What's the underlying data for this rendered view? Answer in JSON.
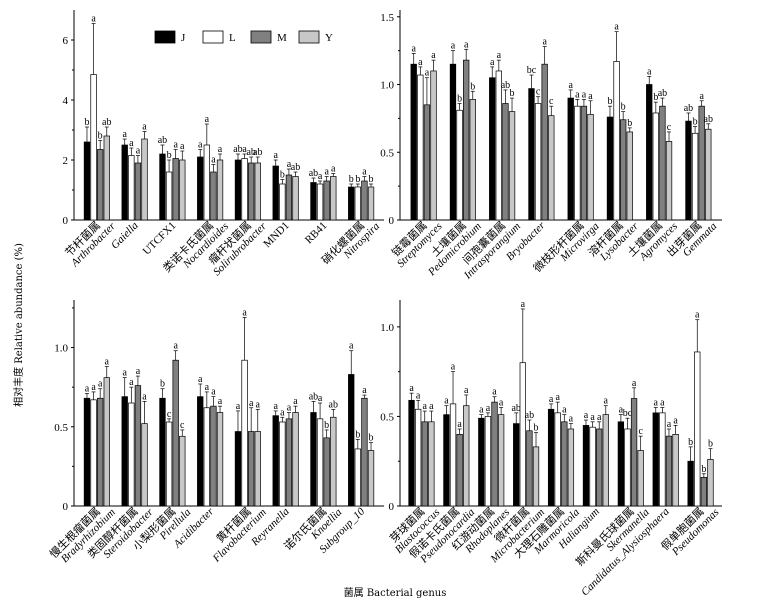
{
  "figure": {
    "xlabel": "菌属 Bacterial genus",
    "ylabel": "相对丰度 Relative abundance (%)"
  },
  "legend": {
    "placement": "top",
    "items": [
      {
        "name": "J",
        "color": "#000000"
      },
      {
        "name": "L",
        "color": "#ffffff"
      },
      {
        "name": "M",
        "color": "#808080"
      },
      {
        "name": "Y",
        "color": "#c8c8c8"
      }
    ]
  },
  "chart_data": [
    {
      "type": "bar",
      "panel": "top-left",
      "ylim": [
        0,
        7
      ],
      "yticks": [
        "0",
        "2",
        "4",
        "6"
      ],
      "categories": [
        {
          "cn": "节杆菌属",
          "la": "Arthrobacter"
        },
        {
          "cn": "",
          "la": "Gaiella"
        },
        {
          "cn": "",
          "la": "UTCFX1"
        },
        {
          "cn": "类诺卡氏菌属",
          "la": "Nocardioides"
        },
        {
          "cn": "瘤杆状菌属",
          "la": "Solirubrobacter"
        },
        {
          "cn": "",
          "la": "MND1"
        },
        {
          "cn": "",
          "la": "RB41"
        },
        {
          "cn": "硝化螺菌属",
          "la": "Nitrospira"
        }
      ],
      "series": [
        {
          "name": "J",
          "values": [
            2.6,
            2.5,
            2.2,
            2.1,
            2.0,
            1.8,
            1.25,
            1.1
          ],
          "errors": [
            0.5,
            0.2,
            0.3,
            0.25,
            0.2,
            0.2,
            0.15,
            0.1
          ]
        },
        {
          "name": "L",
          "values": [
            4.85,
            2.15,
            1.6,
            2.5,
            2.05,
            1.2,
            1.2,
            1.1
          ],
          "errors": [
            1.7,
            0.25,
            0.4,
            0.7,
            0.15,
            0.15,
            0.1,
            0.1
          ]
        },
        {
          "name": "M",
          "values": [
            2.35,
            1.9,
            2.05,
            1.6,
            1.9,
            1.5,
            1.3,
            1.3
          ],
          "errors": [
            0.3,
            0.25,
            0.3,
            0.25,
            0.2,
            0.2,
            0.15,
            0.15
          ]
        },
        {
          "name": "Y",
          "values": [
            2.8,
            2.7,
            2.0,
            2.0,
            1.9,
            1.45,
            1.45,
            1.1
          ],
          "errors": [
            0.3,
            0.25,
            0.3,
            0.2,
            0.2,
            0.15,
            0.1,
            0.1
          ]
        }
      ],
      "letters": [
        [
          "b",
          "a",
          "b",
          "ab"
        ],
        [
          "a",
          "a",
          "a",
          "a"
        ],
        [
          "ab",
          "b",
          "a",
          "a"
        ],
        [
          "a",
          "a",
          "a",
          "a"
        ],
        [
          "ab",
          "a",
          "ab",
          "ab"
        ],
        [
          "a",
          "b",
          "a",
          "ab"
        ],
        [
          "ab",
          "a",
          "a",
          "a"
        ],
        [
          "b",
          "b",
          "a",
          "b"
        ]
      ]
    },
    {
      "type": "bar",
      "panel": "top-right",
      "ylim": [
        0,
        1.55
      ],
      "yticks": [
        "0",
        "0.5",
        "1.0",
        "1.5"
      ],
      "categories": [
        {
          "cn": "链霉菌属",
          "la": "Streptomyces"
        },
        {
          "cn": "土壤菌属",
          "la": "Pedomicrobium"
        },
        {
          "cn": "间孢囊菌属",
          "la": "Intrasporangium"
        },
        {
          "cn": "",
          "la": "Bryobacter"
        },
        {
          "cn": "微枝形杆菌属",
          "la": "Microvirga"
        },
        {
          "cn": "溶杆菌属",
          "la": "Lysobacter"
        },
        {
          "cn": "土壤菌属",
          "la": "Agromyces"
        },
        {
          "cn": "出芽菌属",
          "la": "Gemmata"
        }
      ],
      "series": [
        {
          "name": "J",
          "values": [
            1.15,
            1.15,
            1.05,
            0.97,
            0.9,
            0.76,
            1.0,
            0.73
          ],
          "errors": [
            0.08,
            0.1,
            0.08,
            0.1,
            0.06,
            0.08,
            0.06,
            0.06
          ]
        },
        {
          "name": "L",
          "values": [
            1.07,
            0.81,
            1.1,
            0.86,
            0.84,
            1.17,
            0.79,
            0.64
          ],
          "errors": [
            0.06,
            0.05,
            0.08,
            0.05,
            0.05,
            0.22,
            0.08,
            0.05
          ]
        },
        {
          "name": "M",
          "values": [
            0.85,
            1.18,
            0.86,
            1.15,
            0.84,
            0.74,
            0.84,
            0.84
          ],
          "errors": [
            0.2,
            0.08,
            0.1,
            0.13,
            0.05,
            0.06,
            0.06,
            0.04
          ]
        },
        {
          "name": "Y",
          "values": [
            1.1,
            0.89,
            0.8,
            0.77,
            0.78,
            0.65,
            0.58,
            0.67
          ],
          "errors": [
            0.08,
            0.06,
            0.1,
            0.07,
            0.1,
            0.03,
            0.07,
            0.04
          ]
        }
      ],
      "letters": [
        [
          "a",
          "a",
          "a",
          "a"
        ],
        [
          "a",
          "b",
          "a",
          "b"
        ],
        [
          "a",
          "a",
          "ab",
          "b"
        ],
        [
          "bc",
          "c",
          "a",
          "c"
        ],
        [
          "a",
          "a",
          "a",
          "a"
        ],
        [
          "b",
          "a",
          "b",
          "b"
        ],
        [
          "a",
          "b",
          "ab",
          "c"
        ],
        [
          "ab",
          "b",
          "a",
          "ab"
        ]
      ]
    },
    {
      "type": "bar",
      "panel": "bottom-left",
      "ylim": [
        0,
        1.3
      ],
      "yticks": [
        "0",
        "0.5",
        "1.0"
      ],
      "categories": [
        {
          "cn": "慢生根瘤菌属",
          "la": "Bradyrhizobium"
        },
        {
          "cn": "类固醇杆菌属",
          "la": "Steroidobacter"
        },
        {
          "cn": "小梨形菌属",
          "la": "Pirellula"
        },
        {
          "cn": "",
          "la": "Acidibacter"
        },
        {
          "cn": "黄杆菌属",
          "la": "Flavobacterium"
        },
        {
          "cn": "",
          "la": "Reyranella"
        },
        {
          "cn": "诺尔氏菌属",
          "la": "Knoellia"
        },
        {
          "cn": "",
          "la": "Subgroup_10"
        }
      ],
      "series": [
        {
          "name": "J",
          "values": [
            0.68,
            0.69,
            0.68,
            0.69,
            0.47,
            0.57,
            0.59,
            0.83
          ],
          "errors": [
            0.03,
            0.12,
            0.06,
            0.08,
            0.13,
            0.03,
            0.07,
            0.15
          ]
        },
        {
          "name": "L",
          "values": [
            0.67,
            0.65,
            0.53,
            0.62,
            0.92,
            0.53,
            0.55,
            0.36
          ],
          "errors": [
            0.05,
            0.1,
            0.02,
            0.1,
            0.27,
            0.03,
            0.1,
            0.06
          ]
        },
        {
          "name": "M",
          "values": [
            0.68,
            0.76,
            0.92,
            0.63,
            0.47,
            0.55,
            0.43,
            0.68
          ],
          "errors": [
            0.06,
            0.06,
            0.06,
            0.06,
            0.15,
            0.04,
            0.05,
            0.02
          ]
        },
        {
          "name": "Y",
          "values": [
            0.81,
            0.52,
            0.44,
            0.59,
            0.47,
            0.59,
            0.56,
            0.35
          ],
          "errors": [
            0.07,
            0.14,
            0.04,
            0.04,
            0.14,
            0.04,
            0.05,
            0.05
          ]
        }
      ],
      "letters": [
        [
          "a",
          "a",
          "a",
          "a"
        ],
        [
          "a",
          "a",
          "a",
          "a"
        ],
        [
          "b",
          "c",
          "a",
          "c"
        ],
        [
          "a",
          "a",
          "a",
          "a"
        ],
        [
          "a",
          "a",
          "a",
          "a"
        ],
        [
          "a",
          "a",
          "a",
          "a"
        ],
        [
          "ab",
          "a",
          "b",
          "ab"
        ],
        [
          "a",
          "b",
          "a",
          "b"
        ]
      ]
    },
    {
      "type": "bar",
      "panel": "bottom-right",
      "ylim": [
        0,
        1.15
      ],
      "yticks": [
        "0",
        "0.5",
        "1.0"
      ],
      "categories": [
        {
          "cn": "芽球菌属",
          "la": "Blastococcus"
        },
        {
          "cn": "假诺卡氏菌属",
          "la": "Pseudonocardia"
        },
        {
          "cn": "红游动菌属",
          "la": "Rhodoplanes"
        },
        {
          "cn": "微杆菌属",
          "la": "Microbacterium"
        },
        {
          "cn": "大理石雕菌属",
          "la": "Marmoricola"
        },
        {
          "cn": "",
          "la": "Haliangium"
        },
        {
          "cn": "斯科曼氏球菌属",
          "la": "Skermanella"
        },
        {
          "cn": "",
          "la": "Candidatus_Alysiosphaera"
        },
        {
          "cn": "假单胞菌属",
          "la": "Pseudomonas"
        }
      ],
      "series": [
        {
          "name": "J",
          "values": [
            0.59,
            0.51,
            0.49,
            0.46,
            0.54,
            0.45,
            0.47,
            0.52,
            0.25
          ],
          "errors": [
            0.04,
            0.05,
            0.02,
            0.06,
            0.03,
            0.03,
            0.04,
            0.03,
            0.08
          ]
        },
        {
          "name": "L",
          "values": [
            0.54,
            0.57,
            0.5,
            0.8,
            0.52,
            0.44,
            0.43,
            0.52,
            0.86
          ],
          "errors": [
            0.05,
            0.18,
            0.02,
            0.3,
            0.06,
            0.03,
            0.06,
            0.03,
            0.18
          ]
        },
        {
          "name": "M",
          "values": [
            0.47,
            0.4,
            0.58,
            0.42,
            0.47,
            0.43,
            0.6,
            0.39,
            0.16
          ],
          "errors": [
            0.06,
            0.03,
            0.03,
            0.06,
            0.04,
            0.04,
            0.06,
            0.04,
            0.02
          ]
        },
        {
          "name": "Y",
          "values": [
            0.47,
            0.56,
            0.51,
            0.33,
            0.43,
            0.51,
            0.31,
            0.4,
            0.26
          ],
          "errors": [
            0.06,
            0.06,
            0.04,
            0.08,
            0.03,
            0.05,
            0.08,
            0.05,
            0.06
          ]
        }
      ],
      "letters": [
        [
          "a",
          "a",
          "a",
          "a"
        ],
        [
          "a",
          "a",
          "a",
          "a"
        ],
        [
          "a",
          "a",
          "a",
          "a"
        ],
        [
          "ab",
          "a",
          "ab",
          "b"
        ],
        [
          "a",
          "a",
          "a",
          "a"
        ],
        [
          "a",
          "a",
          "a",
          "a"
        ],
        [
          "a",
          "bc",
          "a",
          "c"
        ],
        [
          "a",
          "a",
          "a",
          "a"
        ],
        [
          "b",
          "a",
          "b",
          "b"
        ]
      ]
    }
  ]
}
